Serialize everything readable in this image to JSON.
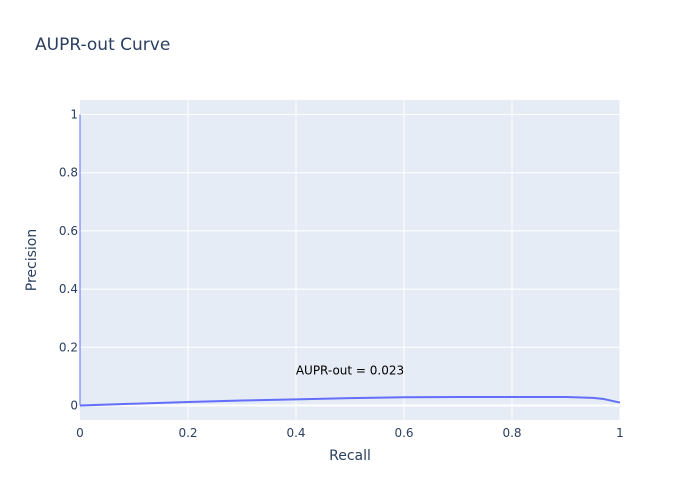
{
  "chart_data": {
    "type": "line",
    "title": "AUPR-out Curve",
    "xlabel": "Recall",
    "ylabel": "Precision",
    "xlim": [
      0,
      1
    ],
    "ylim": [
      -0.05,
      1.05
    ],
    "x_ticks": [
      0,
      0.2,
      0.4,
      0.6,
      0.8,
      1
    ],
    "x_tick_labels": [
      "0",
      "0.2",
      "0.4",
      "0.6",
      "0.8",
      "1"
    ],
    "y_ticks": [
      0,
      0.2,
      0.4,
      0.6,
      0.8,
      1
    ],
    "y_tick_labels": [
      "0",
      "0.2",
      "0.4",
      "0.6",
      "0.8",
      "1"
    ],
    "grid": true,
    "series": [
      {
        "color": "#636efa",
        "x": [
          0,
          0.1,
          0.2,
          0.3,
          0.4,
          0.5,
          0.6,
          0.7,
          0.8,
          0.9,
          0.95,
          0.97,
          1.0
        ],
        "y": [
          0,
          0.006,
          0.012,
          0.017,
          0.021,
          0.025,
          0.028,
          0.029,
          0.029,
          0.029,
          0.026,
          0.022,
          0.01
        ]
      },
      {
        "color": "#636efa",
        "x": [
          0,
          0
        ],
        "y": [
          0,
          1
        ]
      }
    ],
    "annotation": {
      "text": "AUPR-out = 0.023",
      "x": 0.5,
      "y": 0.1
    }
  },
  "colors": {
    "plot_bg": "#e5ecf6",
    "grid": "#ffffff",
    "line": "#636efa",
    "text": "#2a3f5f"
  }
}
